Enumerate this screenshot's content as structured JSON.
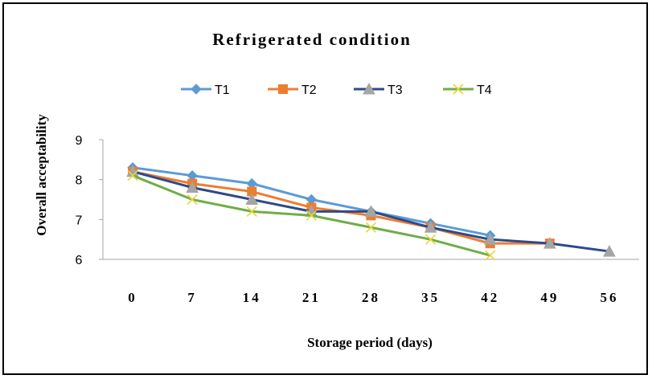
{
  "chart_data": {
    "type": "line",
    "title": "Refrigerated condition",
    "xlabel": "Storage period (days)",
    "ylabel": "Overall  acceptability",
    "categories": [
      "0",
      "7",
      "14",
      "21",
      "28",
      "35",
      "42",
      "49",
      "56"
    ],
    "x": [
      0,
      7,
      14,
      21,
      28,
      35,
      42,
      49,
      56
    ],
    "ylim": [
      6,
      9
    ],
    "yticks": [
      "6",
      "7",
      "8",
      "9"
    ],
    "grid": false,
    "legend_position": "top",
    "series": [
      {
        "name": "T1",
        "color": "#5B9BD5",
        "marker": "diamond",
        "values": [
          8.3,
          8.1,
          7.9,
          7.5,
          7.2,
          6.9,
          6.6,
          null,
          null
        ]
      },
      {
        "name": "T2",
        "color": "#ED7D31",
        "marker": "square",
        "values": [
          8.2,
          7.9,
          7.7,
          7.3,
          7.1,
          6.8,
          6.4,
          6.4,
          null
        ]
      },
      {
        "name": "T3",
        "color": "#2E4A8A",
        "marker": "triangle",
        "values": [
          8.2,
          7.8,
          7.5,
          7.2,
          7.2,
          6.8,
          6.5,
          6.4,
          6.2
        ]
      },
      {
        "name": "T4",
        "color": "#70AD47",
        "marker": "x",
        "values": [
          8.1,
          7.5,
          7.2,
          7.1,
          6.8,
          6.5,
          6.1,
          null,
          null
        ]
      }
    ]
  }
}
